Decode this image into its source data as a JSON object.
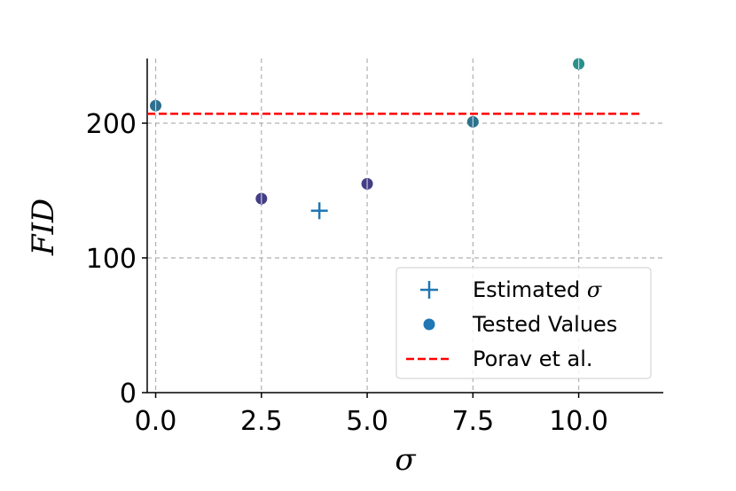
{
  "chart_data": {
    "type": "scatter",
    "xlabel": "σ",
    "ylabel": "FID",
    "xlim": [
      -0.2,
      12.0
    ],
    "ylim": [
      0,
      248
    ],
    "x_ticks": [
      0.0,
      2.5,
      5.0,
      7.5,
      10.0
    ],
    "x_tick_labels": [
      "0.0",
      "2.5",
      "5.0",
      "7.5",
      "10.0"
    ],
    "y_ticks": [
      0,
      100,
      200
    ],
    "y_tick_labels": [
      "0",
      "100",
      "200"
    ],
    "grid": true,
    "legend_position": "lower-right",
    "series": [
      {
        "name": "Estimated σ",
        "legend_label": "Estimated ",
        "legend_symbol": "σ",
        "marker": "plus",
        "color": "#1f77b4",
        "points": [
          {
            "x": 3.87,
            "y": 135
          }
        ]
      },
      {
        "name": "Tested Values",
        "legend_label": "Tested Values",
        "marker": "circle",
        "color": "#1f77b4",
        "points": [
          {
            "x": 0.0,
            "y": 213,
            "color": "#2c6f8e"
          },
          {
            "x": 2.5,
            "y": 144,
            "color": "#433e85"
          },
          {
            "x": 5.0,
            "y": 155,
            "color": "#433e85"
          },
          {
            "x": 7.5,
            "y": 201,
            "color": "#2c728e"
          },
          {
            "x": 10.0,
            "y": 244,
            "color": "#29918c"
          }
        ]
      },
      {
        "name": "Porav et al.",
        "legend_label": "Porav et al.",
        "marker": "dashed-line",
        "color": "#ff0000",
        "x_range": [
          -0.2,
          11.5
        ],
        "y": 207
      }
    ]
  }
}
